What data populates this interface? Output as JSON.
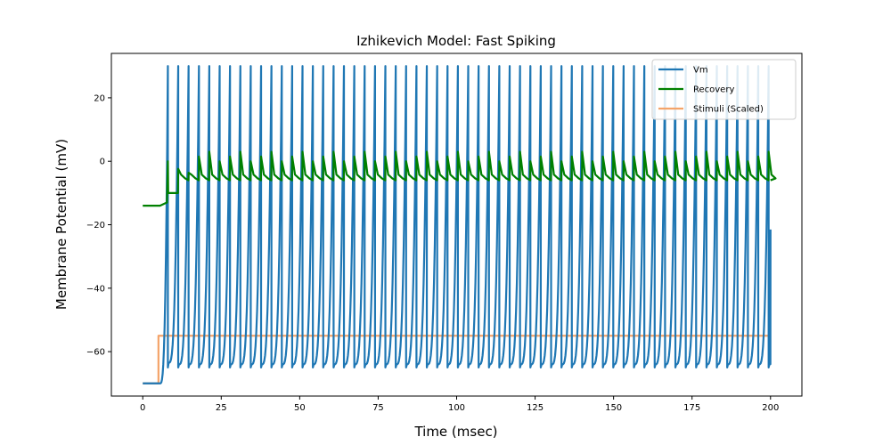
{
  "chart_data": {
    "type": "line",
    "title": "Izhikevich Model: Fast Spiking",
    "xlabel": "Time (msec)",
    "ylabel": "Membrane Potential (mV)",
    "xlim": [
      -10,
      210
    ],
    "ylim": [
      -74,
      34
    ],
    "xticks": [
      0,
      25,
      50,
      75,
      100,
      125,
      150,
      175,
      200
    ],
    "yticks": [
      -60,
      -40,
      -20,
      0,
      20
    ],
    "legend_position": "top-right",
    "series": [
      {
        "name": "Vm",
        "color": "#1f77b4",
        "model": "izhikevich",
        "params": {
          "v_rest": -70,
          "v_peak": 30,
          "v_reset": -65,
          "onset": 5.5,
          "t_end": 200,
          "first_spike": 8,
          "interval": 3.3,
          "last_value": -21.5
        }
      },
      {
        "name": "Recovery",
        "color": "#008000",
        "model": "recovery",
        "params": {
          "baseline": -14,
          "steady": -6,
          "spike_jump": 4.5
        }
      },
      {
        "name": "Stimuli (Scaled)",
        "color": "#f4a46a",
        "points": [
          [
            0,
            -70
          ],
          [
            5,
            -70
          ],
          [
            5,
            -55
          ],
          [
            200,
            -55
          ]
        ]
      }
    ]
  }
}
